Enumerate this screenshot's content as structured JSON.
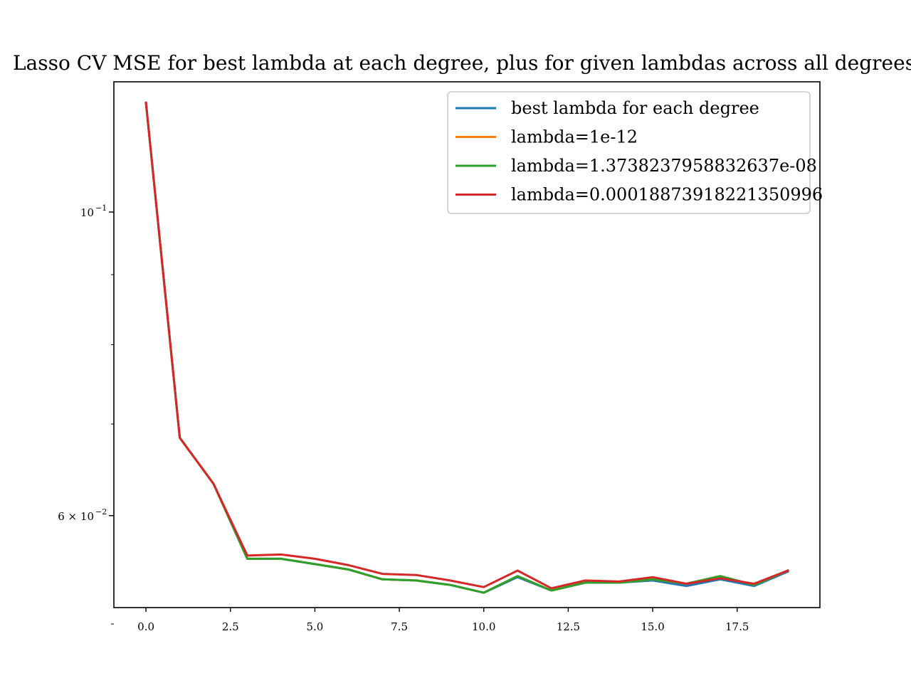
{
  "chart_data": {
    "type": "line",
    "title": "Lasso CV MSE for best lambda at each degree, plus for given lambdas across all degrees",
    "xlabel": "",
    "ylabel": "",
    "x": [
      0,
      1,
      2,
      3,
      4,
      5,
      6,
      7,
      8,
      9,
      10,
      11,
      12,
      13,
      14,
      15,
      16,
      17,
      18,
      19
    ],
    "xlim": [
      -0.95,
      19.95
    ],
    "ylim": [
      0.0514,
      0.1245
    ],
    "yscale": "log",
    "x_ticks": [
      {
        "value": 0.0,
        "label": "0.0"
      },
      {
        "value": 2.5,
        "label": "2.5"
      },
      {
        "value": 5.0,
        "label": "5.0"
      },
      {
        "value": 7.5,
        "label": "7.5"
      },
      {
        "value": 10.0,
        "label": "10.0"
      },
      {
        "value": 12.5,
        "label": "12.5"
      },
      {
        "value": 15.0,
        "label": "15.0"
      },
      {
        "value": 17.5,
        "label": "17.5"
      }
    ],
    "y_major_ticks": [
      {
        "value": 0.1,
        "base": "10",
        "exp": "−1",
        "prefix": ""
      },
      {
        "value": 0.06,
        "base": "10",
        "exp": "−2",
        "prefix": "6 × "
      }
    ],
    "y_minor_ticks": [
      0.09,
      0.08,
      0.07,
      0.06,
      0.05
    ],
    "grid": false,
    "legend_position": "top-right",
    "series": [
      {
        "name": "best lambda for each degree",
        "color": "#1f77b4",
        "values": [
          0.1202,
          0.0684,
          0.0633,
          0.0558,
          0.0558,
          0.0553,
          0.0548,
          0.0539,
          0.0538,
          0.0534,
          0.0527,
          0.0541,
          0.0529,
          0.0536,
          0.0536,
          0.0538,
          0.0533,
          0.0539,
          0.0533,
          0.0546
        ]
      },
      {
        "name": "lambda=1e-12",
        "color": "#ff7f0e",
        "values": [
          0.1202,
          0.0684,
          0.0633,
          0.0558,
          0.0558,
          0.0553,
          0.0548,
          0.0539,
          0.0538,
          0.0534,
          0.0527,
          0.0542,
          0.0529,
          0.0536,
          0.0536,
          0.0539,
          0.0535,
          0.0542,
          0.0534,
          0.0547
        ]
      },
      {
        "name": "lambda=1.3738237958832637e-08",
        "color": "#2ca02c",
        "values": [
          0.1202,
          0.0684,
          0.0633,
          0.0558,
          0.0558,
          0.0553,
          0.0548,
          0.0539,
          0.0538,
          0.0534,
          0.0527,
          0.0542,
          0.0529,
          0.0536,
          0.0536,
          0.0539,
          0.0535,
          0.0542,
          0.0534,
          0.0547
        ]
      },
      {
        "name": "lambda=0.00018873918221350996",
        "color": "#d62728",
        "values": [
          0.1202,
          0.0684,
          0.0633,
          0.0561,
          0.0562,
          0.0558,
          0.0552,
          0.0544,
          0.0543,
          0.0538,
          0.0532,
          0.0547,
          0.0531,
          0.0538,
          0.0537,
          0.0541,
          0.0535,
          0.054,
          0.0535,
          0.0547
        ]
      }
    ]
  }
}
